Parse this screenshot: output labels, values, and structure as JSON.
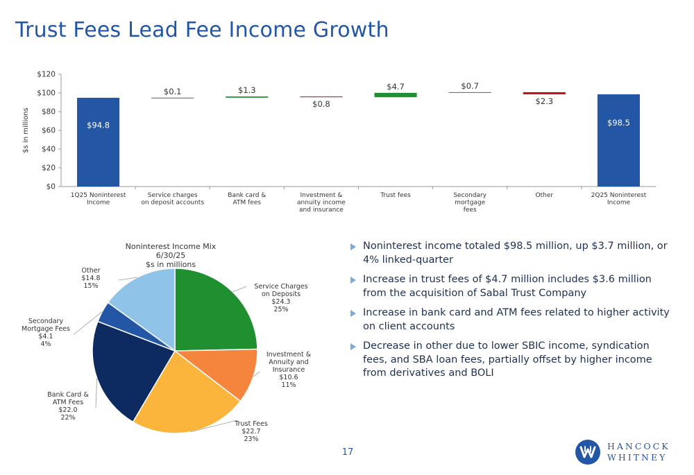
{
  "page": {
    "title": "Trust Fees Lead Fee Income Growth",
    "page_number": "17",
    "logo": {
      "line1": "HANCOCK",
      "line2": "WHITNEY"
    }
  },
  "bullets": [
    "Noninterest income totaled $98.5 million, up $3.7 million, or 4% linked-quarter",
    "Increase in trust fees of $4.7 million includes $3.6 million from the acquisition of Sabal Trust Company",
    "Increase in bank card and ATM fees related to higher activity on client accounts",
    "Decrease in other due to lower SBIC income, syndication fees, and SBA loan fees, partially offset by higher income from derivatives and BOLI"
  ],
  "chart_data": [
    {
      "type": "bar",
      "subtype": "waterfall",
      "ylabel": "$s in millions",
      "ylim": [
        0,
        120
      ],
      "yticks": [
        0,
        20,
        40,
        60,
        80,
        100,
        120
      ],
      "ytick_labels": [
        "$0",
        "$20",
        "$40",
        "$60",
        "$80",
        "$100",
        "$120"
      ],
      "grid": false,
      "categories": [
        [
          "1Q25 Noninterest",
          "Income"
        ],
        [
          "Service charges",
          "on deposit accounts"
        ],
        [
          "Bank card &",
          "ATM fees"
        ],
        [
          "Investment &",
          "annuity income",
          "and insurance"
        ],
        [
          "Trust fees"
        ],
        [
          "Secondary",
          "mortgage",
          "fees"
        ],
        [
          "Other"
        ],
        [
          "2Q25 Noninterest",
          "Income"
        ]
      ],
      "values": [
        94.8,
        0.1,
        1.3,
        -0.8,
        4.7,
        0.7,
        -2.3,
        98.5
      ],
      "kinds": [
        "total",
        "change",
        "change",
        "change",
        "change",
        "change",
        "change",
        "total"
      ],
      "labels": [
        "$94.8",
        "$0.1",
        "$1.3",
        "$0.8",
        "$4.7",
        "$0.7",
        "$2.3",
        "$98.5"
      ],
      "colors": {
        "total": "#2456a6",
        "increase": "#1f8f2f",
        "decrease": "#c0141c"
      }
    },
    {
      "type": "pie",
      "title": [
        "Noninterest Income Mix",
        "6/30/25",
        "$s in millions"
      ],
      "slices": [
        {
          "name": "Service Charges on Deposits",
          "value": 24.3,
          "percent": "25%",
          "color": "#1f8f2f",
          "label_lines": [
            "Service Charges",
            "on Deposits",
            "$24.3",
            "25%"
          ]
        },
        {
          "name": "Investment & Annuity and Insurance",
          "value": 10.6,
          "percent": "11%",
          "color": "#f5843c",
          "label_lines": [
            "Investment &",
            "Annuity and",
            "Insurance",
            "$10.6",
            "11%"
          ]
        },
        {
          "name": "Trust Fees",
          "value": 22.7,
          "percent": "23%",
          "color": "#fbb53c",
          "label_lines": [
            "Trust Fees",
            "$22.7",
            "23%"
          ]
        },
        {
          "name": "Bank Card & ATM Fees",
          "value": 22.0,
          "percent": "22%",
          "color": "#0d2b60",
          "label_lines": [
            "Bank Card &",
            "ATM Fees",
            "$22.0",
            "22%"
          ]
        },
        {
          "name": "Secondary Mortgage Fees",
          "value": 4.1,
          "percent": "4%",
          "color": "#2456a6",
          "label_lines": [
            "Secondary",
            "Mortgage Fees",
            "$4.1",
            "4%"
          ]
        },
        {
          "name": "Other",
          "value": 14.8,
          "percent": "15%",
          "color": "#8fc4e8",
          "label_lines": [
            "Other",
            "$14.8",
            "15%"
          ]
        }
      ]
    }
  ]
}
